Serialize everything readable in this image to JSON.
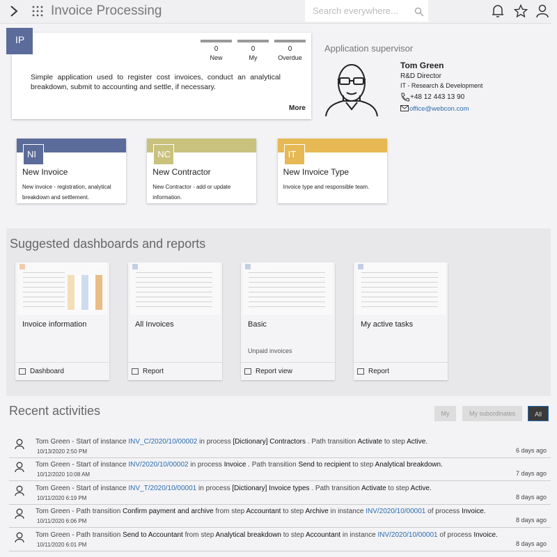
{
  "header": {
    "title": "Invoice Processing",
    "search_placeholder": "Search everywhere..."
  },
  "app_card": {
    "initials": "IP",
    "color": "#5b6b9a",
    "counters": [
      {
        "value": 0,
        "label": "New"
      },
      {
        "value": 0,
        "label": "My"
      },
      {
        "value": 0,
        "label": "Overdue"
      }
    ],
    "description": "Simple application used to register cost invoices, conduct an analytical breakdown, submit to accounting and settle, if necessary.",
    "more": "More"
  },
  "supervisor": {
    "heading": "Application supervisor",
    "name": "Tom Green",
    "role": "R&D Director",
    "department": "IT - Research & Development",
    "phone": "+48 12 443 13 90",
    "email": "office@webcon.com"
  },
  "tiles": [
    {
      "initials": "NI",
      "title": "New Invoice",
      "description": "New invoice - registration, analytical breakdown and settlement.",
      "color": "#5b6b9a"
    },
    {
      "initials": "NC",
      "title": "New Contractor",
      "description": "New Contractor - add or update information.",
      "color": "#c9c27e"
    },
    {
      "initials": "IT",
      "title": "New Invoice Type",
      "description": "Invoice type and responsible team.",
      "color": "#e6b955"
    }
  ],
  "dashboards": {
    "heading": "Suggested dashboards and reports",
    "items": [
      {
        "title": "Invoice information",
        "footer": "Dashboard"
      },
      {
        "title": "All Invoices",
        "footer": "Report"
      },
      {
        "title": "Basic",
        "subtitle": "Unpaid invoices",
        "footer": "Report view"
      },
      {
        "title": "My active tasks",
        "footer": "Report"
      }
    ]
  },
  "activities": {
    "heading": "Recent activities",
    "filters": [
      {
        "label": "My"
      },
      {
        "label": "My subordinates"
      },
      {
        "label": "All",
        "active": true
      }
    ],
    "items": [
      {
        "segments": [
          {
            "text": "Tom Green - Start of instance "
          },
          {
            "text": "INV_C/2020/10/00002",
            "style": "link"
          },
          {
            "text": " in process "
          },
          {
            "text": "[Dictionary] Contractors",
            "style": "em"
          },
          {
            "text": " . Path transition "
          },
          {
            "text": "Activate",
            "style": "em"
          },
          {
            "text": " to step "
          },
          {
            "text": "Active.",
            "style": "em"
          }
        ],
        "date": "10/13/2020 2:50 PM",
        "ago": "6 days ago"
      },
      {
        "segments": [
          {
            "text": "Tom Green - Start of instance "
          },
          {
            "text": "INV/2020/10/00002",
            "style": "link"
          },
          {
            "text": " in process "
          },
          {
            "text": "Invoice",
            "style": "em"
          },
          {
            "text": " . Path transition "
          },
          {
            "text": "Send to recipient",
            "style": "em"
          },
          {
            "text": " to step "
          },
          {
            "text": "Analytical breakdown.",
            "style": "em"
          }
        ],
        "date": "10/12/2020 10:08 AM",
        "ago": "7 days ago"
      },
      {
        "segments": [
          {
            "text": "Tom Green - Start of instance "
          },
          {
            "text": "INV_T/2020/10/00001",
            "style": "link"
          },
          {
            "text": " in process "
          },
          {
            "text": "[Dictionary] Invoice types",
            "style": "em"
          },
          {
            "text": " . Path transition "
          },
          {
            "text": "Activate",
            "style": "em"
          },
          {
            "text": " to step "
          },
          {
            "text": "Active.",
            "style": "em"
          }
        ],
        "date": "10/11/2020 6:19 PM",
        "ago": "8 days ago"
      },
      {
        "segments": [
          {
            "text": "Tom Green - Path transition "
          },
          {
            "text": "Confirm payment and archive",
            "style": "em"
          },
          {
            "text": " from step "
          },
          {
            "text": "Accountant",
            "style": "em"
          },
          {
            "text": " to step "
          },
          {
            "text": "Archive",
            "style": "em"
          },
          {
            "text": " in instance "
          },
          {
            "text": "INV/2020/10/00001",
            "style": "link"
          },
          {
            "text": " of process "
          },
          {
            "text": "Invoice.",
            "style": "em"
          }
        ],
        "date": "10/11/2020 6:06 PM",
        "ago": "8 days ago"
      },
      {
        "segments": [
          {
            "text": "Tom Green - Path transition "
          },
          {
            "text": "Send to Accountant",
            "style": "em"
          },
          {
            "text": " from step "
          },
          {
            "text": "Analytical breakdown",
            "style": "em"
          },
          {
            "text": " to step "
          },
          {
            "text": "Accountant",
            "style": "em"
          },
          {
            "text": " in instance "
          },
          {
            "text": "INV/2020/10/00001",
            "style": "link"
          },
          {
            "text": " of process "
          },
          {
            "text": "Invoice.",
            "style": "em"
          }
        ],
        "date": "10/11/2020 6:01 PM",
        "ago": "8 days ago"
      }
    ]
  }
}
